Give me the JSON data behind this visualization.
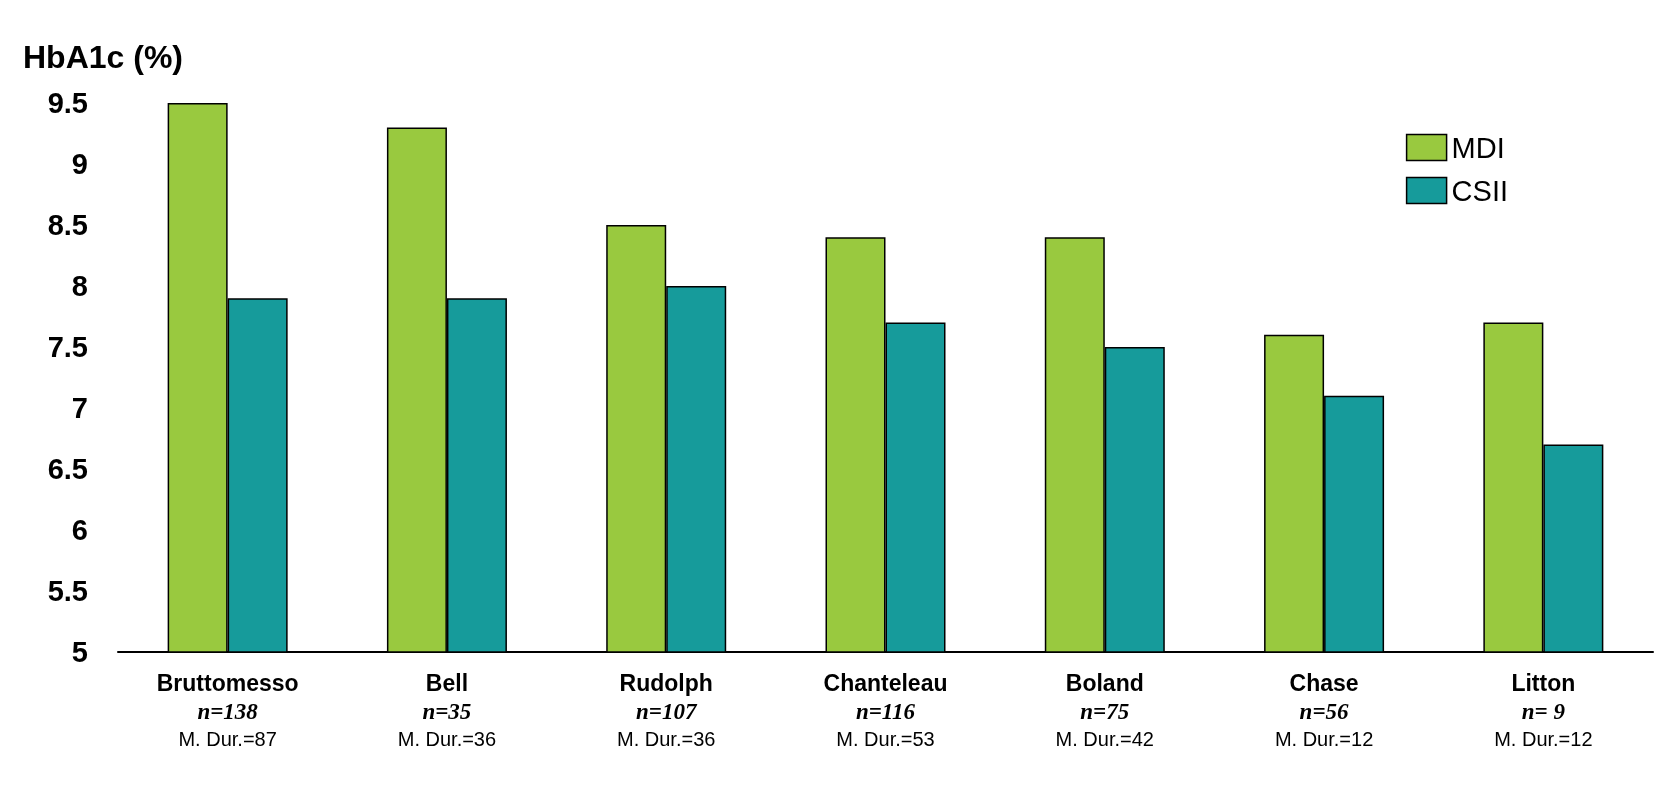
{
  "chart_data": {
    "type": "bar",
    "ylabel": "HbA1c (%)",
    "categories": [
      "Bruttomesso\nn=138\nM. Dur.=87",
      "Bell\nn=35\nM. Dur.=36",
      "Rudolph\nn=107\nM. Dur.=36",
      "Chanteleau\nn=116\nM. Dur.=53",
      "Boland\nn=75\nM. Dur.=42",
      "Chase\nn=56\nM. Dur.=12",
      "Litton\nn= 9\nM. Dur.=12"
    ],
    "series": [
      {
        "name": "MDI",
        "color": "#99c93f",
        "values": [
          9.5,
          9.3,
          8.5,
          8.4,
          8.4,
          7.6,
          7.7
        ]
      },
      {
        "name": "CSII",
        "color": "#169b9b",
        "values": [
          7.9,
          7.9,
          8.0,
          7.7,
          7.5,
          7.1,
          6.7
        ]
      }
    ],
    "ylim": [
      5,
      9.5
    ],
    "yticks": [
      5,
      5.5,
      6,
      6.5,
      7,
      7.5,
      8,
      8.5,
      9,
      9.5
    ],
    "grid": false,
    "legend": "top right"
  }
}
